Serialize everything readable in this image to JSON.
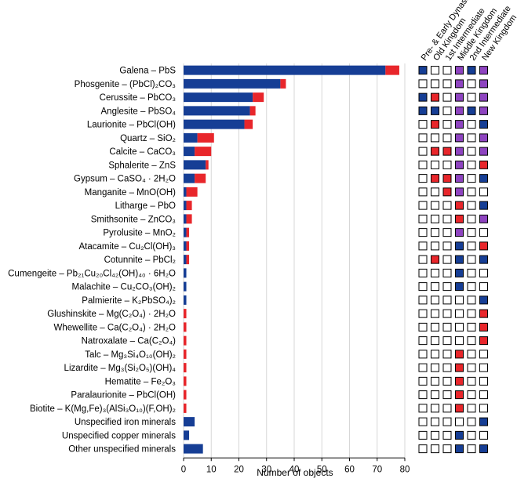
{
  "chart_data": {
    "type": "bar",
    "orientation": "horizontal",
    "stacked": true,
    "xlabel": "Number of objects",
    "xlim": [
      0,
      80
    ],
    "xticks": [
      "0",
      "10",
      "20",
      "30",
      "40",
      "50",
      "60",
      "70",
      "80"
    ],
    "grid": "vertical",
    "colors": {
      "blue": "#163e95",
      "red": "#e8262b",
      "purple": "#8e44c0",
      "empty": "#ffffff"
    },
    "periods": [
      "Pre- & Early Dynastic",
      "Old Kingdom",
      "1st Intermediate",
      "Middle Kingdom",
      "2nd Intermediate",
      "New Kingdom"
    ],
    "minerals": [
      {
        "name": "Galena",
        "formula": "PbS",
        "blue": 73,
        "red": 5,
        "periods": [
          "B",
          "E",
          "E",
          "P",
          "B",
          "P"
        ]
      },
      {
        "name": "Phosgenite",
        "formula": "(PbCl)₂CO₃",
        "blue": 35,
        "red": 2,
        "periods": [
          "E",
          "E",
          "E",
          "P",
          "E",
          "P"
        ]
      },
      {
        "name": "Cerussite",
        "formula": "PbCO₃",
        "blue": 25,
        "red": 4,
        "periods": [
          "B",
          "R",
          "E",
          "P",
          "E",
          "P"
        ]
      },
      {
        "name": "Anglesite",
        "formula": "PbSO₄",
        "blue": 24,
        "red": 2,
        "periods": [
          "B",
          "B",
          "E",
          "P",
          "B",
          "P"
        ]
      },
      {
        "name": "Laurionite",
        "formula": "PbCl(OH)",
        "blue": 22,
        "red": 3,
        "periods": [
          "E",
          "R",
          "E",
          "P",
          "E",
          "B"
        ]
      },
      {
        "name": "Quartz",
        "formula": "SiO₂",
        "blue": 5,
        "red": 6,
        "periods": [
          "E",
          "E",
          "E",
          "P",
          "E",
          "P"
        ]
      },
      {
        "name": "Calcite",
        "formula": "CaCO₃",
        "blue": 4,
        "red": 6,
        "periods": [
          "E",
          "R",
          "R",
          "P",
          "E",
          "P"
        ]
      },
      {
        "name": "Sphalerite",
        "formula": "ZnS",
        "blue": 8,
        "red": 1,
        "periods": [
          "E",
          "E",
          "E",
          "P",
          "E",
          "R"
        ]
      },
      {
        "name": "Gypsum",
        "formula": "CaSO₄ · 2H₂O",
        "blue": 4,
        "red": 4,
        "periods": [
          "E",
          "R",
          "R",
          "P",
          "E",
          "B"
        ]
      },
      {
        "name": "Manganite",
        "formula": "MnO(OH)",
        "blue": 1,
        "red": 4,
        "periods": [
          "E",
          "E",
          "R",
          "P",
          "E",
          "E"
        ]
      },
      {
        "name": "Litharge",
        "formula": "PbO",
        "blue": 1,
        "red": 2,
        "periods": [
          "E",
          "E",
          "E",
          "R",
          "E",
          "B"
        ]
      },
      {
        "name": "Smithsonite",
        "formula": "ZnCO₃",
        "blue": 1,
        "red": 2,
        "periods": [
          "E",
          "E",
          "E",
          "R",
          "E",
          "P"
        ]
      },
      {
        "name": "Pyrolusite",
        "formula": "MnO₂",
        "blue": 1,
        "red": 1,
        "periods": [
          "E",
          "E",
          "E",
          "P",
          "E",
          "E"
        ]
      },
      {
        "name": "Atacamite",
        "formula": "Cu₂Cl(OH)₃",
        "blue": 1,
        "red": 1,
        "periods": [
          "E",
          "E",
          "E",
          "B",
          "E",
          "R"
        ]
      },
      {
        "name": "Cotunnite",
        "formula": "PbCl₂",
        "blue": 1,
        "red": 1,
        "periods": [
          "E",
          "R",
          "E",
          "B",
          "E",
          "B"
        ]
      },
      {
        "name": "Cumengeite",
        "formula": "Pb₂₁Cu₂₀Cl₄₂(OH)₄₀ · 6H₂O",
        "blue": 1,
        "red": 0,
        "periods": [
          "E",
          "E",
          "E",
          "B",
          "E",
          "E"
        ]
      },
      {
        "name": "Malachite",
        "formula": "Cu₂CO₃(OH)₂",
        "blue": 1,
        "red": 0,
        "periods": [
          "E",
          "E",
          "E",
          "B",
          "E",
          "E"
        ]
      },
      {
        "name": "Palmierite",
        "formula": "K₂PbSO₄)₂",
        "blue": 1,
        "red": 0,
        "periods": [
          "E",
          "E",
          "E",
          "E",
          "E",
          "B"
        ]
      },
      {
        "name": "Glushinskite",
        "formula": "Mg(C₂O₄) · 2H₂O",
        "blue": 0,
        "red": 1,
        "periods": [
          "E",
          "E",
          "E",
          "E",
          "E",
          "R"
        ]
      },
      {
        "name": "Whewellite",
        "formula": "Ca(C₂O₄) · 2H₂O",
        "blue": 0,
        "red": 1,
        "periods": [
          "E",
          "E",
          "E",
          "E",
          "E",
          "R"
        ]
      },
      {
        "name": "Natroxalate",
        "formula": "Ca(C₂O₄)",
        "blue": 0,
        "red": 1,
        "periods": [
          "E",
          "E",
          "E",
          "E",
          "E",
          "R"
        ]
      },
      {
        "name": "Talc",
        "formula": "Mg₃Si₄O₁₀(OH)₂",
        "blue": 0,
        "red": 1,
        "periods": [
          "E",
          "E",
          "E",
          "R",
          "E",
          "E"
        ]
      },
      {
        "name": "Lizardite",
        "formula": "Mg₃(Si₂O₅)(OH)₄",
        "blue": 0,
        "red": 1,
        "periods": [
          "E",
          "E",
          "E",
          "R",
          "E",
          "E"
        ]
      },
      {
        "name": "Hematite",
        "formula": "Fe₂O₃",
        "blue": 0,
        "red": 1,
        "periods": [
          "E",
          "E",
          "E",
          "R",
          "E",
          "E"
        ]
      },
      {
        "name": "Paralaurionite",
        "formula": "PbCl(OH)",
        "blue": 0,
        "red": 1,
        "periods": [
          "E",
          "E",
          "E",
          "R",
          "E",
          "E"
        ]
      },
      {
        "name": "Biotite",
        "formula": "K(Mg,Fe)₃(AlSi₃O₁₀)(F,OH)₂",
        "blue": 0,
        "red": 1,
        "periods": [
          "E",
          "E",
          "E",
          "R",
          "E",
          "E"
        ]
      },
      {
        "name": "Unspecified iron minerals",
        "formula": "",
        "blue": 4,
        "red": 0,
        "periods": [
          "E",
          "E",
          "E",
          "E",
          "E",
          "B"
        ]
      },
      {
        "name": "Unspecified copper minerals",
        "formula": "",
        "blue": 2,
        "red": 0,
        "periods": [
          "E",
          "E",
          "E",
          "B",
          "E",
          "E"
        ]
      },
      {
        "name": "Other unspecified minerals",
        "formula": "",
        "blue": 7,
        "red": 0,
        "periods": [
          "E",
          "E",
          "E",
          "B",
          "E",
          "B"
        ]
      }
    ]
  }
}
